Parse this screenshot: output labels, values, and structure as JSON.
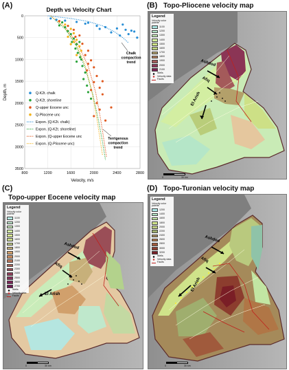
{
  "panels": {
    "a": {
      "letter": "(A)"
    },
    "b": {
      "letter": "(B)",
      "title": "Topo-Pliocene velocity map"
    },
    "c": {
      "letter": "(C)",
      "title": "Topo-upper Eocene velocity map"
    },
    "d": {
      "letter": "(D)",
      "title": "Topo-Turonian velocity map"
    }
  },
  "chart_data": {
    "type": "scatter",
    "title": "Depth vs Velocity Chart",
    "xlabel": "Velocity, m/s",
    "ylabel": "Depth, m",
    "xlim": [
      800,
      2800
    ],
    "ylim": [
      0,
      3500
    ],
    "y_inverted": true,
    "xticks": [
      "800",
      "1200",
      "1600",
      "2000",
      "2400",
      "2800"
    ],
    "yticks": [
      "0",
      "500",
      "1000",
      "1500",
      "2000",
      "2500",
      "3000",
      "3500"
    ],
    "xtick_values": [
      800,
      1200,
      1600,
      2000,
      2400,
      2800
    ],
    "ytick_values": [
      0,
      500,
      1000,
      1500,
      2000,
      2500,
      3000,
      3500
    ],
    "legend_position": "left-middle",
    "series": [
      {
        "name": "Q-K2t. chalk",
        "color": "#2a8fd6",
        "points": [
          [
            1250,
            60
          ],
          [
            1350,
            90
          ],
          [
            1500,
            110
          ],
          [
            1700,
            140
          ],
          [
            1850,
            180
          ],
          [
            2050,
            230
          ],
          [
            2200,
            260
          ],
          [
            2400,
            290
          ],
          [
            2550,
            320
          ],
          [
            2650,
            340
          ],
          [
            2700,
            360
          ],
          [
            2500,
            200
          ],
          [
            2300,
            380
          ],
          [
            2600,
            420
          ],
          [
            2750,
            500
          ],
          [
            2450,
            450
          ],
          [
            1900,
            160
          ],
          [
            2100,
            300
          ]
        ]
      },
      {
        "name": "Q-K2t. shoreline",
        "color": "#2aa33a",
        "points": [
          [
            1450,
            150
          ],
          [
            1500,
            260
          ],
          [
            1550,
            350
          ],
          [
            1600,
            420
          ],
          [
            1650,
            520
          ],
          [
            1700,
            650
          ],
          [
            1680,
            750
          ],
          [
            1720,
            850
          ],
          [
            1760,
            950
          ],
          [
            1700,
            1050
          ],
          [
            1800,
            1150
          ],
          [
            1850,
            1300
          ],
          [
            1820,
            1450
          ],
          [
            1880,
            1600
          ],
          [
            1900,
            1750
          ],
          [
            1950,
            1900
          ],
          [
            1400,
            220
          ],
          [
            1750,
            600
          ],
          [
            1620,
            600
          ],
          [
            1780,
            1000
          ]
        ]
      },
      {
        "name": "Q-upper Eocene unc",
        "color": "#e05a20",
        "points": [
          [
            1400,
            120
          ],
          [
            1550,
            230
          ],
          [
            1650,
            320
          ],
          [
            1680,
            480
          ],
          [
            1800,
            640
          ],
          [
            1900,
            800
          ],
          [
            1850,
            900
          ],
          [
            1950,
            1020
          ],
          [
            2000,
            1180
          ],
          [
            1880,
            1250
          ],
          [
            2050,
            1380
          ],
          [
            2000,
            1520
          ],
          [
            2100,
            1650
          ],
          [
            2150,
            1800
          ],
          [
            1950,
            1700
          ],
          [
            2050,
            2000
          ],
          [
            2100,
            2150
          ],
          [
            2000,
            2300
          ],
          [
            2200,
            2400
          ],
          [
            2300,
            2100
          ],
          [
            1750,
            450
          ],
          [
            2150,
            1500
          ],
          [
            1900,
            1100
          ]
        ]
      },
      {
        "name": "Q-Pliocene unc",
        "color": "#f2b31e",
        "points": [
          [
            1500,
            200
          ],
          [
            1600,
            300
          ],
          [
            1650,
            400
          ],
          [
            1700,
            550
          ],
          [
            1750,
            700
          ],
          [
            1780,
            800
          ],
          [
            1600,
            650
          ],
          [
            1550,
            480
          ],
          [
            1650,
            600
          ],
          [
            1700,
            900
          ]
        ]
      }
    ],
    "trendlines": [
      {
        "name": "Expon. (Q-K2t. chalk)",
        "color": "#2a8fd6",
        "style": "dotted",
        "points": [
          [
            1200,
            0
          ],
          [
            1600,
            60
          ],
          [
            1900,
            130
          ],
          [
            2150,
            230
          ],
          [
            2350,
            360
          ],
          [
            2500,
            500
          ],
          [
            2600,
            620
          ]
        ]
      },
      {
        "name": "Expon. (Q-K2t. shoreline)",
        "color": "#2aa33a",
        "style": "dotted",
        "points": [
          [
            1250,
            0
          ],
          [
            1500,
            300
          ],
          [
            1700,
            700
          ],
          [
            1850,
            1200
          ],
          [
            1980,
            1800
          ],
          [
            2080,
            2400
          ],
          [
            2150,
            2900
          ],
          [
            2200,
            3300
          ]
        ]
      },
      {
        "name": "Expon. (Q-upper Eocene unc",
        "color": "#e05a20",
        "style": "dotted",
        "points": [
          [
            1250,
            0
          ],
          [
            1500,
            260
          ],
          [
            1720,
            650
          ],
          [
            1900,
            1150
          ],
          [
            2030,
            1750
          ],
          [
            2120,
            2400
          ],
          [
            2180,
            2900
          ],
          [
            2220,
            3250
          ]
        ]
      },
      {
        "name": "Expon. (Q-Pliocene unc)",
        "color": "#f2b31e",
        "style": "dotted",
        "points": [
          [
            1250,
            0
          ],
          [
            1480,
            240
          ],
          [
            1680,
            620
          ],
          [
            1840,
            1100
          ],
          [
            1960,
            1700
          ],
          [
            2050,
            2350
          ],
          [
            2110,
            2850
          ],
          [
            2150,
            3200
          ]
        ]
      }
    ],
    "annotations": [
      {
        "text_lines": [
          "Chalk",
          "compaction",
          "trend"
        ]
      },
      {
        "text_lines": [
          "Terrigenous",
          "compaction",
          "trend"
        ]
      }
    ]
  },
  "maps": {
    "b": {
      "legend_title": "Legend",
      "legend_sub": "Velocity color palette",
      "values": [
        "1100",
        "1200",
        "1300",
        "1400",
        "1500",
        "1600",
        "1700",
        "1800",
        "1900",
        "2000",
        "2100"
      ],
      "colors": [
        "#a8e2de",
        "#b5e6c8",
        "#c6ebb5",
        "#d5ee9b",
        "#cde086",
        "#b9cd7a",
        "#b3a06a",
        "#b07a58",
        "#a45a5a",
        "#8b3555",
        "#7a1f52"
      ],
      "extras": [
        "Wells",
        "Velocity data",
        "Faults"
      ],
      "places": [
        "Ashdod",
        "Afiq",
        "El Arish"
      ],
      "scale_labels": [
        "0",
        "30 km"
      ]
    },
    "c": {
      "legend_title": "Legend",
      "legend_sub": "Velocity color palette",
      "values": [
        "1100",
        "1200",
        "1300",
        "1400",
        "1500",
        "1600",
        "1700",
        "1800",
        "1900",
        "2000",
        "2100",
        "2200",
        "2300",
        "2400",
        "2500",
        "2600",
        "2700"
      ],
      "colors": [
        "#b5e6e0",
        "#bfe8cc",
        "#c9ecba",
        "#d6efa5",
        "#d8e892",
        "#c8d88a",
        "#bfc982",
        "#c7b07a",
        "#d1a06c",
        "#c88a5e",
        "#b87559",
        "#a86055",
        "#9a4e57",
        "#8e3d59",
        "#84305a",
        "#7c2458",
        "#6e1a52"
      ],
      "extras": [
        "Wells",
        "Velocity data",
        "Faults"
      ],
      "places": [
        "Ashdod",
        "Afiq",
        "El Arish"
      ],
      "scale_labels": [
        "0",
        "30 km"
      ]
    },
    "d": {
      "legend_title": "Legend",
      "legend_sub": "Velocity color palette",
      "values": [
        "1200",
        "1400",
        "1600",
        "1800",
        "2000",
        "2200",
        "2400",
        "2600",
        "2800",
        "3000",
        "3200"
      ],
      "colors": [
        "#a8e6e6",
        "#b0e3c2",
        "#c2e6a3",
        "#cfe38a",
        "#b9c97e",
        "#9fae6e",
        "#a58a5a",
        "#b07646",
        "#a05a3c",
        "#8c3d2e",
        "#7a1e26"
      ],
      "extras": [
        "Wells",
        "Velocity data",
        "Faults"
      ],
      "places": [
        "Ashdod",
        "Afiq",
        "El Arish"
      ],
      "scale_labels": [
        "0",
        "30 km"
      ]
    }
  }
}
